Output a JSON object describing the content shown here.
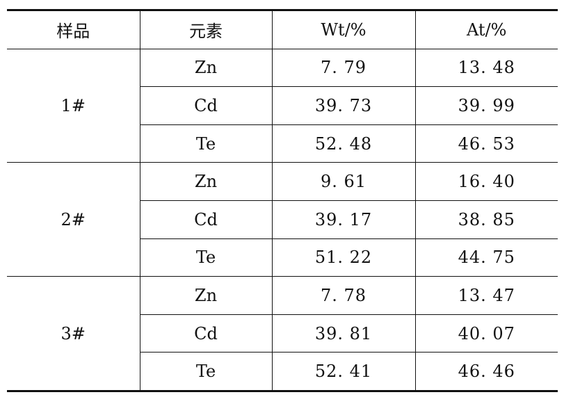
{
  "table": {
    "headers": [
      "样品",
      "元素",
      "Wt/%",
      "At/%"
    ],
    "samples": [
      {
        "sample": "1#",
        "rows": [
          {
            "element": "Zn",
            "wt": "7. 79",
            "at": "13. 48"
          },
          {
            "element": "Cd",
            "wt": "39. 73",
            "at": "39. 99"
          },
          {
            "element": "Te",
            "wt": "52. 48",
            "at": "46. 53"
          }
        ]
      },
      {
        "sample": "2#",
        "rows": [
          {
            "element": "Zn",
            "wt": "9. 61",
            "at": "16. 40"
          },
          {
            "element": "Cd",
            "wt": "39. 17",
            "at": "38. 85"
          },
          {
            "element": "Te",
            "wt": "51. 22",
            "at": "44. 75"
          }
        ]
      },
      {
        "sample": "3#",
        "rows": [
          {
            "element": "Zn",
            "wt": "7. 78",
            "at": "13. 47"
          },
          {
            "element": "Cd",
            "wt": "39. 81",
            "at": "40. 07"
          },
          {
            "element": "Te",
            "wt": "52. 41",
            "at": "46. 46"
          }
        ]
      }
    ]
  }
}
